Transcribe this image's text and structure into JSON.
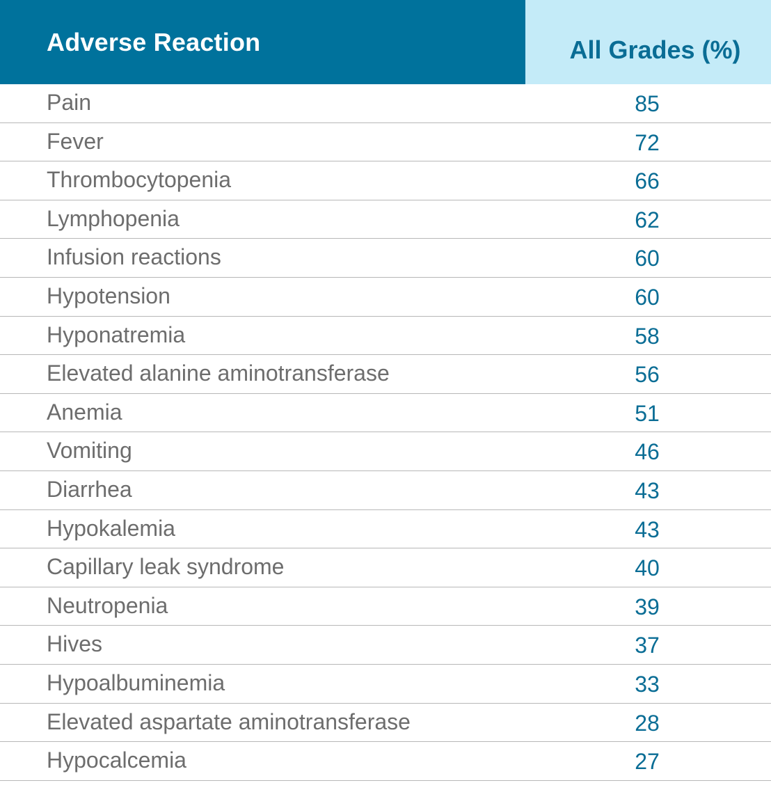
{
  "table": {
    "headers": {
      "reaction": "Adverse Reaction",
      "grades": "All Grades (%)"
    },
    "rows": [
      {
        "reaction": "Pain",
        "value": "85"
      },
      {
        "reaction": "Fever",
        "value": "72"
      },
      {
        "reaction": "Thrombocytopenia",
        "value": "66"
      },
      {
        "reaction": "Lymphopenia",
        "value": "62"
      },
      {
        "reaction": "Infusion reactions",
        "value": "60"
      },
      {
        "reaction": "Hypotension",
        "value": "60"
      },
      {
        "reaction": "Hyponatremia",
        "value": "58"
      },
      {
        "reaction": "Elevated alanine aminotransferase",
        "value": "56"
      },
      {
        "reaction": "Anemia",
        "value": "51"
      },
      {
        "reaction": "Vomiting",
        "value": "46"
      },
      {
        "reaction": "Diarrhea",
        "value": "43"
      },
      {
        "reaction": "Hypokalemia",
        "value": "43"
      },
      {
        "reaction": "Capillary leak syndrome",
        "value": "40"
      },
      {
        "reaction": "Neutropenia",
        "value": "39"
      },
      {
        "reaction": "Hives",
        "value": "37"
      },
      {
        "reaction": "Hypoalbuminemia",
        "value": "33"
      },
      {
        "reaction": "Elevated aspartate aminotransferase",
        "value": "28"
      },
      {
        "reaction": "Hypocalcemia",
        "value": "27"
      }
    ]
  },
  "colors": {
    "header_primary": "#00729c",
    "header_secondary": "#c4ebf8",
    "value_text": "#0a6d95",
    "label_text": "#6d6d6d",
    "divider": "#b7b7b7"
  }
}
